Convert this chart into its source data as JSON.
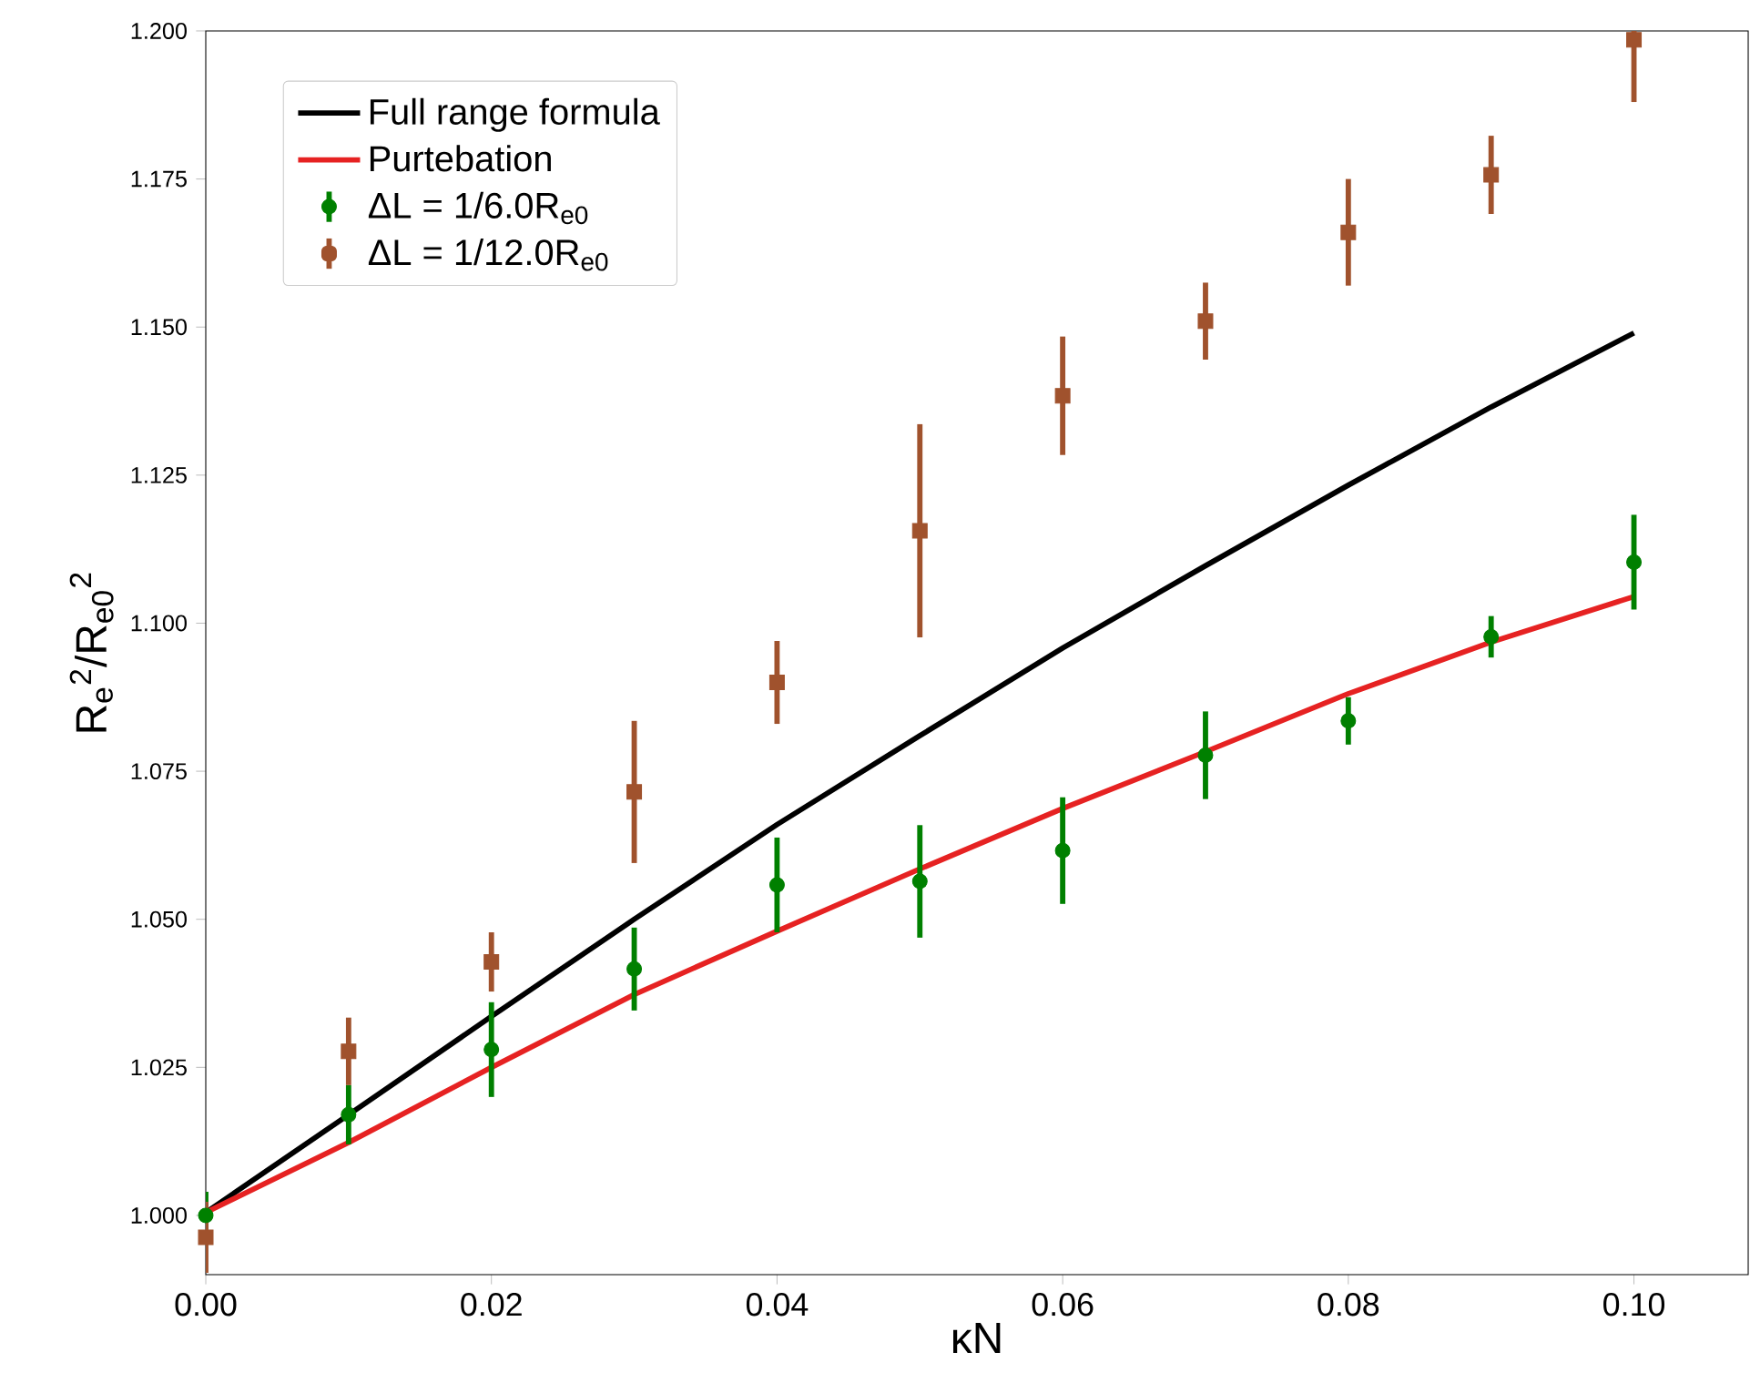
{
  "chart_data": {
    "type": "line",
    "xlabel": "κN",
    "ylabel": "R$_{e}$$^{2}$/R$_{e0}$$^{2}$",
    "xlim": [
      0,
      0.108
    ],
    "ylim": [
      0.99,
      1.2
    ],
    "xticks": [
      {
        "value": 0,
        "label": "0.00"
      },
      {
        "value": 0.02,
        "label": "0.02"
      },
      {
        "value": 0.04,
        "label": "0.04"
      },
      {
        "value": 0.06,
        "label": "0.06"
      },
      {
        "value": 0.08,
        "label": "0.08"
      },
      {
        "value": 0.1,
        "label": "0.10"
      }
    ],
    "yticks": [
      {
        "value": 1.0,
        "label": "1.000"
      },
      {
        "value": 1.025,
        "label": "1.025"
      },
      {
        "value": 1.05,
        "label": "1.050"
      },
      {
        "value": 1.075,
        "label": "1.075"
      },
      {
        "value": 1.1,
        "label": "1.100"
      },
      {
        "value": 1.125,
        "label": "1.125"
      },
      {
        "value": 1.15,
        "label": "1.150"
      },
      {
        "value": 1.175,
        "label": "1.175"
      },
      {
        "value": 1.2,
        "label": "1.200"
      }
    ],
    "legend": "top left",
    "series": [
      {
        "name": "Full range formula",
        "color": "#000000",
        "x": [
          0,
          0.01,
          0.02,
          0.03,
          0.04,
          0.05,
          0.06,
          0.07,
          0.08,
          0.09,
          0.1
        ],
        "values": [
          1.0005,
          1.017,
          1.0336,
          1.05,
          1.066,
          1.081,
          1.0958,
          1.1097,
          1.1233,
          1.1365,
          1.149
        ]
      },
      {
        "name": "Purtebation",
        "color": "#e62222",
        "x": [
          0,
          0.01,
          0.02,
          0.03,
          0.04,
          0.05,
          0.06,
          0.07,
          0.08,
          0.09,
          0.1
        ],
        "values": [
          1.0005,
          1.0123,
          1.025,
          1.0373,
          1.048,
          1.0585,
          1.0687,
          1.0783,
          1.0881,
          1.0968,
          1.1045
        ]
      },
      {
        "name": "ΔL = 1/6.0R$_{e0}$",
        "type": "scatter",
        "marker": "circle",
        "color": "#008000",
        "x": [
          0,
          0.01,
          0.02,
          0.03,
          0.04,
          0.05,
          0.06,
          0.07,
          0.08,
          0.09,
          0.1
        ],
        "values": [
          1.0,
          1.017,
          1.028,
          1.0416,
          1.0558,
          1.0564,
          1.0616,
          1.0777,
          1.0835,
          1.0977,
          1.1103
        ],
        "errors": [
          0.004,
          0.005,
          0.008,
          0.007,
          0.008,
          0.0095,
          0.009,
          0.0074,
          0.004,
          0.0035,
          0.008
        ]
      },
      {
        "name": "ΔL = 1/12.0R$_{e0}$",
        "type": "scatter",
        "marker": "square",
        "color": "#a0522d",
        "x": [
          0,
          0.01,
          0.02,
          0.03,
          0.04,
          0.05,
          0.06,
          0.07,
          0.08,
          0.09,
          0.1
        ],
        "values": [
          0.9963,
          1.0277,
          1.0428,
          1.0715,
          1.09,
          1.1156,
          1.1384,
          1.151,
          1.166,
          1.1757,
          1.1985
        ],
        "errors": [
          0.006,
          0.0057,
          0.005,
          0.012,
          0.007,
          0.018,
          0.01,
          0.0065,
          0.009,
          0.0066,
          0.0105
        ]
      }
    ]
  }
}
